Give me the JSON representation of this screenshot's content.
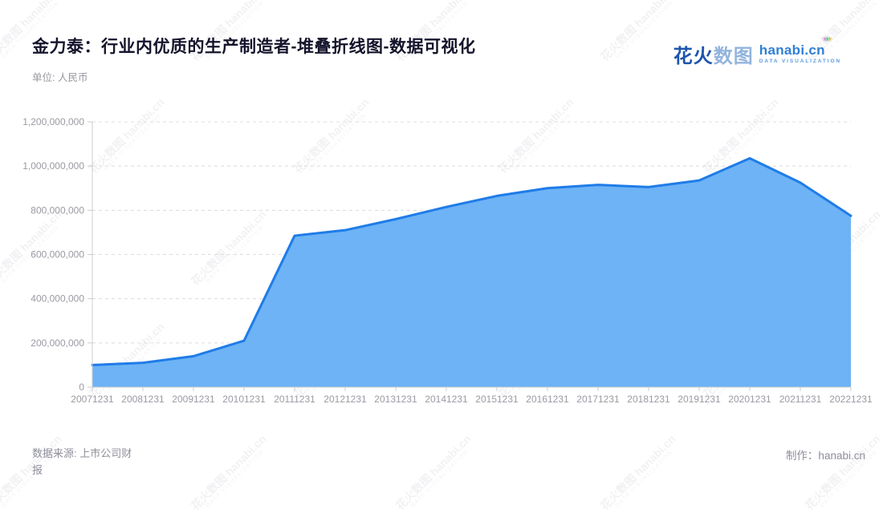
{
  "header": {
    "title": "金力泰：行业内优质的生产制造者-堆叠折线图-数据可视化",
    "title_color": "#14142b",
    "unit_label": "单位: 人民币"
  },
  "logo": {
    "cn_bold": "花火",
    "cn_light": "数图",
    "domain": "hanabi.cn",
    "tagline": "DATA VISUALIZATION"
  },
  "watermark": {
    "text": "花火数图 hanabi.cn",
    "tagline": "DATA VISUALIZATION"
  },
  "footer": {
    "source": "数据来源: 上市公司财报",
    "credit": "制作：hanabi.cn"
  },
  "chart_data": {
    "type": "area",
    "title": "金力泰：行业内优质的生产制造者-堆叠折线图-数据可视化",
    "x": [
      "20071231",
      "20081231",
      "20091231",
      "20101231",
      "20111231",
      "20121231",
      "20131231",
      "20141231",
      "20151231",
      "20161231",
      "20171231",
      "20181231",
      "20191231",
      "20201231",
      "20211231",
      "20221231"
    ],
    "values": [
      100000000,
      110000000,
      140000000,
      210000000,
      685000000,
      710000000,
      760000000,
      815000000,
      865000000,
      900000000,
      915000000,
      905000000,
      935000000,
      1035000000,
      925000000,
      775000000
    ],
    "xlabel": "",
    "ylabel": "单位: 人民币",
    "ylim": [
      0,
      1200000000
    ],
    "ytick_interval": 200000000,
    "ytick_labels": [
      "0",
      "200,000,000",
      "400,000,000",
      "600,000,000",
      "800,000,000",
      "1,000,000,000",
      "1,200,000,000"
    ],
    "grid": "horizontal-dashed",
    "legend": "none",
    "line_color": "#1f7ce8",
    "fill_color": "#6db3f5",
    "axis_color": "#cccccc",
    "grid_color": "#dcdcdc",
    "tick_label_color": "#9a9aa3"
  }
}
